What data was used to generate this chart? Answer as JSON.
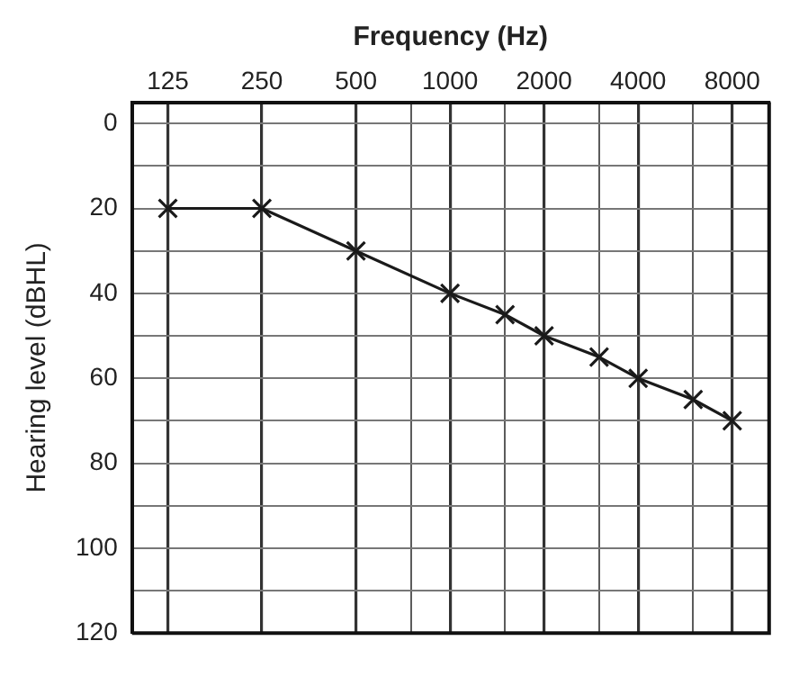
{
  "chart_data": {
    "type": "line",
    "xlabel": "Frequency (Hz)",
    "ylabel": "Hearing level (dBHL)",
    "x": [
      125,
      250,
      500,
      1000,
      1500,
      2000,
      3000,
      4000,
      6000,
      8000
    ],
    "series": [
      {
        "color": "#1a1a1a",
        "values": [
          20,
          20,
          30,
          40,
          45,
          50,
          55,
          60,
          65,
          70
        ]
      }
    ],
    "log": "x",
    "xlim": [
      96,
      10500
    ],
    "xticks": [
      125,
      250,
      500,
      {
        "value": 750,
        "label": null
      },
      1000,
      {
        "value": 1500,
        "label": null
      },
      2000,
      {
        "value": 3000,
        "label": null
      },
      4000,
      {
        "value": 6000,
        "label": null
      },
      8000
    ],
    "ylim": [
      120,
      -5
    ],
    "yticks": [
      0,
      {
        "value": 10,
        "label": null
      },
      20,
      {
        "value": 30,
        "label": null
      },
      40,
      {
        "value": 50,
        "label": null
      },
      60,
      {
        "value": 70,
        "label": null
      },
      80,
      {
        "value": 90,
        "label": null
      },
      100,
      {
        "value": 110,
        "label": null
      },
      120
    ],
    "grid": true,
    "legend": false,
    "marker": "cross",
    "line_style": "solid"
  }
}
